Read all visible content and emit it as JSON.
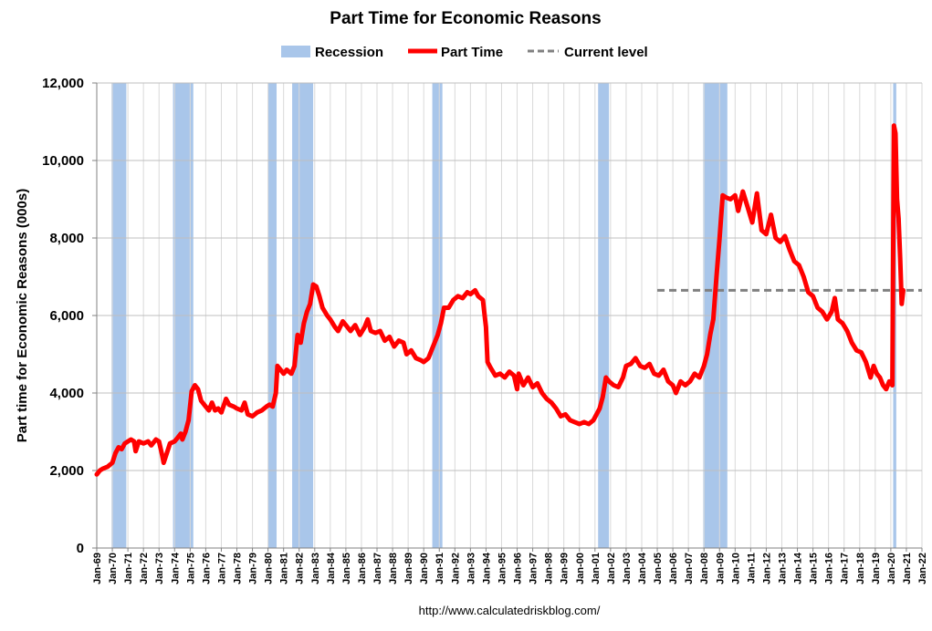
{
  "colors": {
    "recession": "#a9c6ea",
    "part_time": "#ff0000",
    "current_level": "#808080",
    "grid": "#bfbfbf",
    "axis": "#808080"
  },
  "source_url": "http://www.calculatedriskblog.com/",
  "chart_data": {
    "type": "line",
    "title": "Part Time for Economic Reasons",
    "ylabel": "Part time for Economic Reasons (000s)",
    "xlabel": "",
    "ylim": [
      0,
      12000
    ],
    "yticks": [
      0,
      2000,
      4000,
      6000,
      8000,
      10000,
      12000
    ],
    "ytick_labels": [
      "0",
      "2,000",
      "4,000",
      "6,000",
      "8,000",
      "10,000",
      "12,000"
    ],
    "xlim": [
      1969.0,
      2022.0
    ],
    "xtick_labels": [
      "Jan-69",
      "Jan-70",
      "Jan-71",
      "Jan-72",
      "Jan-73",
      "Jan-74",
      "Jan-75",
      "Jan-76",
      "Jan-77",
      "Jan-78",
      "Jan-79",
      "Jan-80",
      "Jan-81",
      "Jan-82",
      "Jan-83",
      "Jan-84",
      "Jan-85",
      "Jan-86",
      "Jan-87",
      "Jan-88",
      "Jan-89",
      "Jan-90",
      "Jan-91",
      "Jan-92",
      "Jan-93",
      "Jan-94",
      "Jan-95",
      "Jan-96",
      "Jan-97",
      "Jan-98",
      "Jan-99",
      "Jan-00",
      "Jan-01",
      "Jan-02",
      "Jan-03",
      "Jan-04",
      "Jan-05",
      "Jan-06",
      "Jan-07",
      "Jan-08",
      "Jan-09",
      "Jan-10",
      "Jan-11",
      "Jan-12",
      "Jan-13",
      "Jan-14",
      "Jan-15",
      "Jan-16",
      "Jan-17",
      "Jan-18",
      "Jan-19",
      "Jan-20",
      "Jan-21",
      "Jan-22"
    ],
    "grid": true,
    "legend_position": "top-center",
    "legend": [
      {
        "label": "Recession",
        "kind": "bar"
      },
      {
        "label": "Part Time",
        "kind": "line"
      },
      {
        "label": "Current level",
        "kind": "dashed"
      }
    ],
    "recessions": [
      [
        1969.95,
        1970.9
      ],
      [
        1973.9,
        1975.2
      ],
      [
        1980.0,
        1980.55
      ],
      [
        1981.55,
        1982.9
      ],
      [
        1990.55,
        1991.2
      ],
      [
        2001.2,
        2001.9
      ],
      [
        2007.95,
        2009.5
      ],
      [
        2020.15,
        2020.35
      ]
    ],
    "current_level": {
      "value": 6650,
      "x_start": 2005.0,
      "x_end": 2022.0
    },
    "series": [
      {
        "name": "Part Time",
        "points": [
          [
            1969.0,
            1900
          ],
          [
            1969.2,
            2000
          ],
          [
            1969.4,
            2050
          ],
          [
            1969.7,
            2100
          ],
          [
            1970.0,
            2200
          ],
          [
            1970.2,
            2450
          ],
          [
            1970.4,
            2600
          ],
          [
            1970.6,
            2550
          ],
          [
            1970.8,
            2700
          ],
          [
            1971.0,
            2750
          ],
          [
            1971.2,
            2800
          ],
          [
            1971.4,
            2750
          ],
          [
            1971.5,
            2500
          ],
          [
            1971.7,
            2750
          ],
          [
            1972.0,
            2700
          ],
          [
            1972.3,
            2750
          ],
          [
            1972.5,
            2650
          ],
          [
            1972.8,
            2800
          ],
          [
            1973.0,
            2750
          ],
          [
            1973.2,
            2400
          ],
          [
            1973.3,
            2200
          ],
          [
            1973.5,
            2450
          ],
          [
            1973.7,
            2700
          ],
          [
            1974.0,
            2750
          ],
          [
            1974.2,
            2850
          ],
          [
            1974.4,
            2950
          ],
          [
            1974.5,
            2800
          ],
          [
            1974.7,
            3000
          ],
          [
            1974.9,
            3300
          ],
          [
            1975.1,
            4050
          ],
          [
            1975.3,
            4200
          ],
          [
            1975.5,
            4100
          ],
          [
            1975.7,
            3800
          ],
          [
            1976.0,
            3650
          ],
          [
            1976.2,
            3550
          ],
          [
            1976.4,
            3750
          ],
          [
            1976.6,
            3550
          ],
          [
            1976.8,
            3600
          ],
          [
            1977.0,
            3500
          ],
          [
            1977.3,
            3850
          ],
          [
            1977.5,
            3700
          ],
          [
            1977.8,
            3650
          ],
          [
            1978.0,
            3600
          ],
          [
            1978.3,
            3550
          ],
          [
            1978.5,
            3750
          ],
          [
            1978.7,
            3450
          ],
          [
            1979.0,
            3400
          ],
          [
            1979.3,
            3500
          ],
          [
            1979.6,
            3550
          ],
          [
            1979.9,
            3650
          ],
          [
            1980.1,
            3700
          ],
          [
            1980.3,
            3650
          ],
          [
            1980.5,
            4000
          ],
          [
            1980.6,
            4700
          ],
          [
            1980.8,
            4600
          ],
          [
            1981.0,
            4500
          ],
          [
            1981.2,
            4600
          ],
          [
            1981.5,
            4500
          ],
          [
            1981.7,
            4700
          ],
          [
            1981.9,
            5500
          ],
          [
            1982.1,
            5300
          ],
          [
            1982.3,
            5800
          ],
          [
            1982.5,
            6100
          ],
          [
            1982.7,
            6300
          ],
          [
            1982.9,
            6800
          ],
          [
            1983.1,
            6750
          ],
          [
            1983.3,
            6500
          ],
          [
            1983.5,
            6200
          ],
          [
            1983.8,
            6000
          ],
          [
            1984.0,
            5900
          ],
          [
            1984.3,
            5700
          ],
          [
            1984.5,
            5600
          ],
          [
            1984.8,
            5850
          ],
          [
            1985.0,
            5750
          ],
          [
            1985.3,
            5600
          ],
          [
            1985.6,
            5750
          ],
          [
            1985.9,
            5500
          ],
          [
            1986.2,
            5700
          ],
          [
            1986.4,
            5900
          ],
          [
            1986.6,
            5600
          ],
          [
            1986.9,
            5550
          ],
          [
            1987.2,
            5600
          ],
          [
            1987.5,
            5350
          ],
          [
            1987.8,
            5450
          ],
          [
            1988.1,
            5200
          ],
          [
            1988.4,
            5350
          ],
          [
            1988.7,
            5300
          ],
          [
            1988.9,
            5000
          ],
          [
            1989.2,
            5100
          ],
          [
            1989.5,
            4900
          ],
          [
            1989.8,
            4850
          ],
          [
            1990.0,
            4800
          ],
          [
            1990.3,
            4900
          ],
          [
            1990.5,
            5100
          ],
          [
            1990.7,
            5300
          ],
          [
            1990.9,
            5500
          ],
          [
            1991.1,
            5800
          ],
          [
            1991.3,
            6200
          ],
          [
            1991.6,
            6200
          ],
          [
            1991.9,
            6400
          ],
          [
            1992.2,
            6500
          ],
          [
            1992.5,
            6450
          ],
          [
            1992.8,
            6600
          ],
          [
            1993.0,
            6550
          ],
          [
            1993.3,
            6650
          ],
          [
            1993.5,
            6500
          ],
          [
            1993.8,
            6400
          ],
          [
            1994.0,
            5700
          ],
          [
            1994.1,
            4800
          ],
          [
            1994.3,
            4650
          ],
          [
            1994.6,
            4450
          ],
          [
            1994.9,
            4500
          ],
          [
            1995.2,
            4400
          ],
          [
            1995.5,
            4550
          ],
          [
            1995.8,
            4450
          ],
          [
            1996.0,
            4100
          ],
          [
            1996.1,
            4500
          ],
          [
            1996.4,
            4200
          ],
          [
            1996.7,
            4400
          ],
          [
            1997.0,
            4150
          ],
          [
            1997.3,
            4250
          ],
          [
            1997.6,
            4000
          ],
          [
            1997.9,
            3850
          ],
          [
            1998.2,
            3750
          ],
          [
            1998.5,
            3600
          ],
          [
            1998.8,
            3400
          ],
          [
            1999.1,
            3450
          ],
          [
            1999.4,
            3300
          ],
          [
            1999.7,
            3250
          ],
          [
            2000.0,
            3200
          ],
          [
            2000.3,
            3250
          ],
          [
            2000.6,
            3200
          ],
          [
            2000.9,
            3300
          ],
          [
            2001.1,
            3450
          ],
          [
            2001.3,
            3600
          ],
          [
            2001.5,
            3900
          ],
          [
            2001.7,
            4400
          ],
          [
            2001.9,
            4300
          ],
          [
            2002.2,
            4200
          ],
          [
            2002.5,
            4150
          ],
          [
            2002.8,
            4400
          ],
          [
            2003.0,
            4700
          ],
          [
            2003.3,
            4750
          ],
          [
            2003.6,
            4900
          ],
          [
            2003.9,
            4700
          ],
          [
            2004.2,
            4650
          ],
          [
            2004.5,
            4750
          ],
          [
            2004.8,
            4500
          ],
          [
            2005.1,
            4450
          ],
          [
            2005.4,
            4600
          ],
          [
            2005.7,
            4300
          ],
          [
            2006.0,
            4200
          ],
          [
            2006.2,
            4000
          ],
          [
            2006.5,
            4300
          ],
          [
            2006.8,
            4200
          ],
          [
            2007.1,
            4300
          ],
          [
            2007.4,
            4500
          ],
          [
            2007.7,
            4400
          ],
          [
            2008.0,
            4700
          ],
          [
            2008.2,
            5000
          ],
          [
            2008.4,
            5500
          ],
          [
            2008.6,
            5900
          ],
          [
            2008.8,
            7000
          ],
          [
            2009.0,
            8000
          ],
          [
            2009.2,
            9100
          ],
          [
            2009.4,
            9050
          ],
          [
            2009.7,
            9000
          ],
          [
            2010.0,
            9100
          ],
          [
            2010.2,
            8700
          ],
          [
            2010.5,
            9200
          ],
          [
            2010.8,
            8800
          ],
          [
            2011.1,
            8400
          ],
          [
            2011.4,
            9150
          ],
          [
            2011.7,
            8200
          ],
          [
            2012.0,
            8100
          ],
          [
            2012.3,
            8600
          ],
          [
            2012.6,
            8000
          ],
          [
            2012.9,
            7900
          ],
          [
            2013.2,
            8050
          ],
          [
            2013.5,
            7700
          ],
          [
            2013.8,
            7400
          ],
          [
            2014.1,
            7300
          ],
          [
            2014.4,
            7000
          ],
          [
            2014.7,
            6600
          ],
          [
            2015.0,
            6500
          ],
          [
            2015.3,
            6200
          ],
          [
            2015.6,
            6100
          ],
          [
            2015.9,
            5900
          ],
          [
            2016.2,
            6100
          ],
          [
            2016.4,
            6450
          ],
          [
            2016.6,
            5900
          ],
          [
            2016.9,
            5800
          ],
          [
            2017.2,
            5600
          ],
          [
            2017.5,
            5300
          ],
          [
            2017.8,
            5100
          ],
          [
            2018.1,
            5050
          ],
          [
            2018.4,
            4800
          ],
          [
            2018.7,
            4400
          ],
          [
            2018.9,
            4700
          ],
          [
            2019.1,
            4500
          ],
          [
            2019.3,
            4400
          ],
          [
            2019.5,
            4200
          ],
          [
            2019.7,
            4100
          ],
          [
            2019.9,
            4300
          ],
          [
            2020.1,
            4200
          ],
          [
            2020.2,
            10900
          ],
          [
            2020.3,
            10700
          ],
          [
            2020.4,
            9000
          ],
          [
            2020.5,
            8500
          ],
          [
            2020.6,
            7500
          ],
          [
            2020.7,
            6300
          ],
          [
            2020.8,
            6650
          ]
        ]
      }
    ]
  }
}
